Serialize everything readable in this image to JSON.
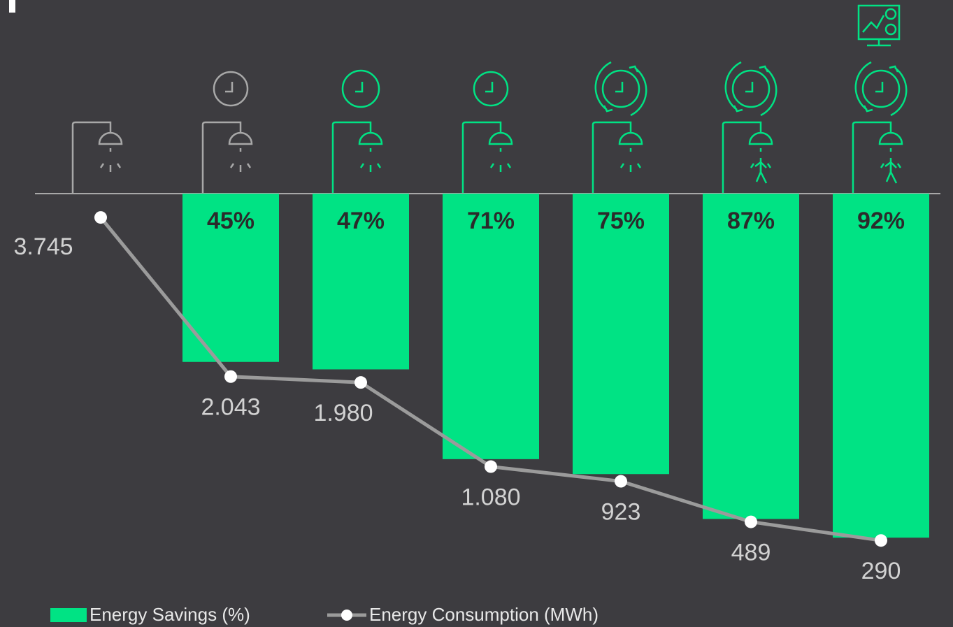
{
  "chart_data": {
    "type": "bar",
    "categories": [
      null,
      null,
      null,
      null,
      null,
      null,
      null
    ],
    "series": [
      {
        "name": "Energy Savings (%)",
        "type": "bar",
        "color": "#00e384",
        "values": [
          null,
          45,
          47,
          71,
          75,
          87,
          92
        ],
        "value_labels": [
          null,
          "45%",
          "47%",
          "71%",
          "75%",
          "87%",
          "92%"
        ]
      },
      {
        "name": "Energy Consumption (MWh)",
        "type": "line",
        "axis": "y2",
        "color": "#9b9b9b",
        "values": [
          3745,
          2043,
          1980,
          1080,
          923,
          489,
          290
        ],
        "value_labels": [
          "3.745",
          "2.043",
          "1.980",
          "1.080",
          "923",
          "489",
          "290"
        ]
      }
    ],
    "ylim": [
      0,
      100
    ],
    "y2lim": [
      0,
      4000
    ]
  }
}
